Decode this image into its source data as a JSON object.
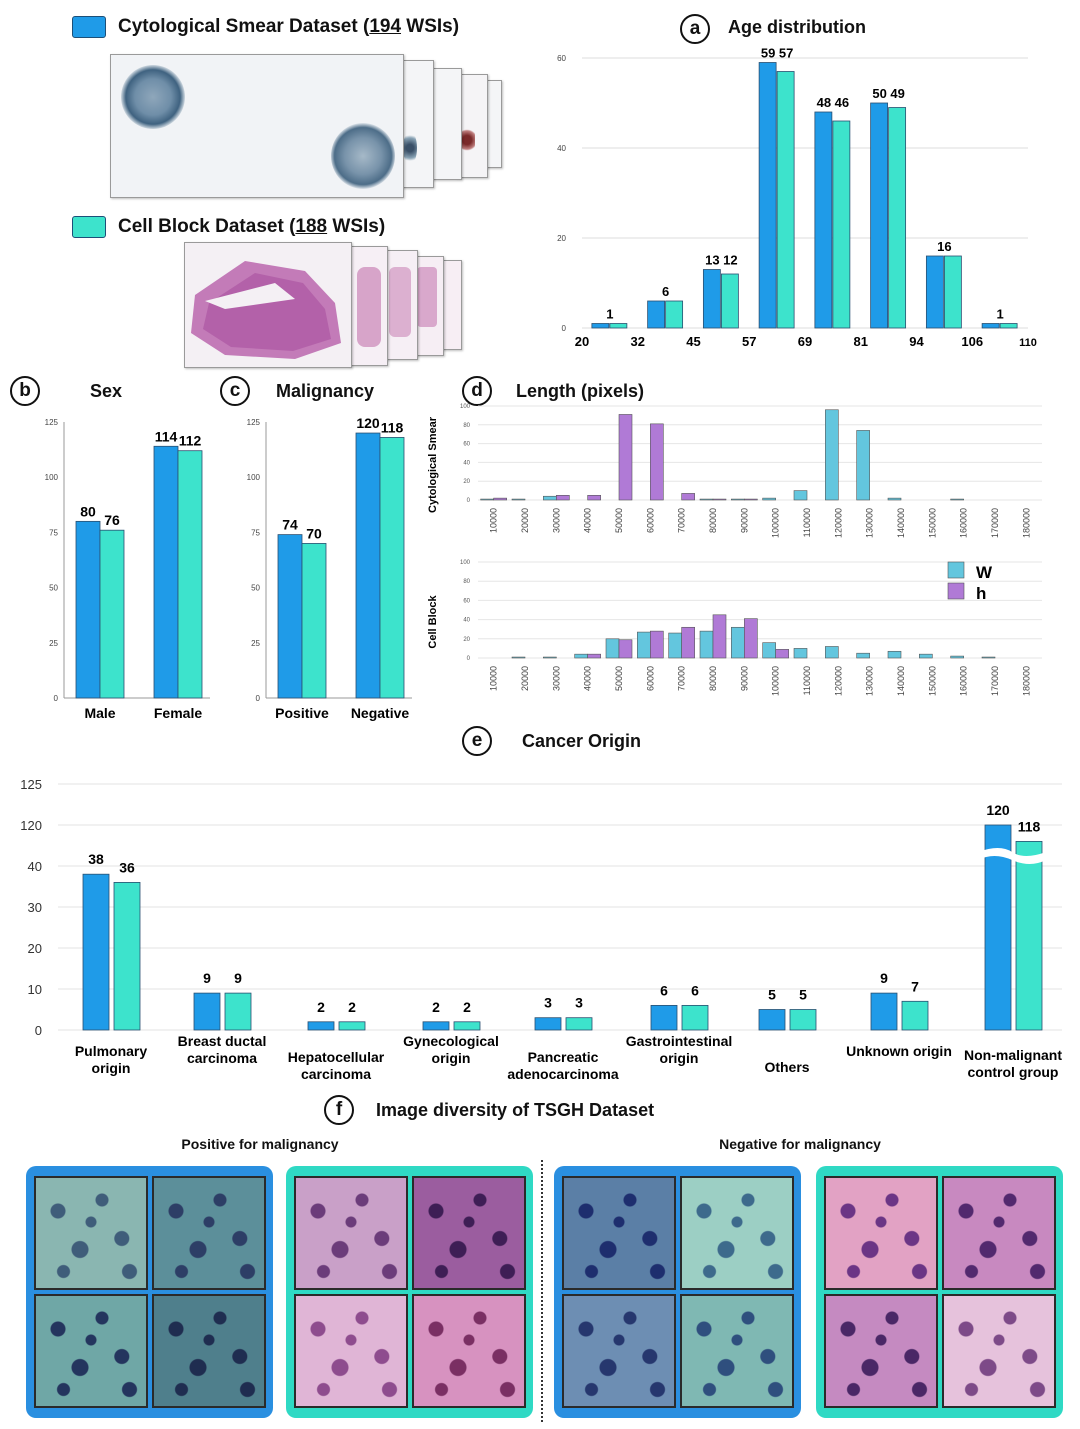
{
  "colors": {
    "blue": "#1f9be8",
    "teal": "#3de3cc",
    "w": "#63c6de",
    "h": "#b07ad6",
    "cyto_frame": "#2a8fe0",
    "cell_frame": "#2fd9c4"
  },
  "datasets": {
    "cyto": {
      "prefix": "Cytological Smear Dataset (",
      "count": "194",
      "suffix": " WSIs)"
    },
    "cell": {
      "prefix": "Cell Block Dataset (",
      "count": "188",
      "suffix": " WSIs)"
    }
  },
  "panels": {
    "a": {
      "letter": "a",
      "title": "Age distribution"
    },
    "b": {
      "letter": "b",
      "title": "Sex"
    },
    "c": {
      "letter": "c",
      "title": "Malignancy"
    },
    "d": {
      "letter": "d",
      "title": "Length (pixels)"
    },
    "e": {
      "letter": "e",
      "title": "Cancer Origin"
    },
    "f": {
      "letter": "f",
      "title": "Image diversity of TSGH Dataset"
    }
  },
  "diversity": {
    "positive_title": "Positive for malignancy",
    "negative_title": "Negative for malignancy"
  },
  "chart_data": [
    {
      "id": "a",
      "type": "bar",
      "title": "Age distribution",
      "x_ticks": [
        "20",
        "32",
        "45",
        "57",
        "69",
        "81",
        "94",
        "106",
        "110"
      ],
      "y_ticks": [
        "0",
        "20",
        "40",
        "60"
      ],
      "ylim": [
        0,
        60
      ],
      "series": [
        {
          "values": [
            1,
            6,
            13,
            59,
            48,
            50,
            16,
            1
          ]
        },
        {
          "values": [
            1,
            6,
            12,
            57,
            46,
            49,
            16,
            1
          ]
        }
      ],
      "labels": [
        "1",
        "6",
        "13 12",
        "59 57",
        "48 46",
        "50 49",
        "16",
        "1"
      ]
    },
    {
      "id": "b",
      "type": "bar",
      "title": "Sex",
      "categories": [
        "Male",
        "Female"
      ],
      "y_ticks": [
        "0",
        "25",
        "50",
        "75",
        "100",
        "125"
      ],
      "ylim": [
        0,
        125
      ],
      "series": [
        {
          "values": [
            80,
            114
          ]
        },
        {
          "values": [
            76,
            112
          ]
        }
      ]
    },
    {
      "id": "c",
      "type": "bar",
      "title": "Malignancy",
      "categories": [
        "Positive",
        "Negative"
      ],
      "y_ticks": [
        "0",
        "25",
        "50",
        "75",
        "100",
        "125"
      ],
      "ylim": [
        0,
        125
      ],
      "series": [
        {
          "values": [
            74,
            120
          ]
        },
        {
          "values": [
            70,
            118
          ]
        }
      ]
    },
    {
      "id": "d1",
      "type": "bar",
      "ylabel": "Cytological Smear",
      "categories": [
        "10000",
        "20000",
        "30000",
        "40000",
        "50000",
        "60000",
        "70000",
        "80000",
        "90000",
        "100000",
        "110000",
        "120000",
        "130000",
        "140000",
        "150000",
        "160000",
        "170000",
        "180000"
      ],
      "y_ticks": [
        "0",
        "20",
        "40",
        "60",
        "80",
        "100"
      ],
      "ylim": [
        0,
        100
      ],
      "series": [
        {
          "name": "W",
          "values": [
            1,
            1,
            4,
            0,
            0,
            0,
            0,
            1,
            1,
            2,
            10,
            96,
            74,
            2,
            0,
            1,
            0,
            0
          ]
        },
        {
          "name": "h",
          "values": [
            2,
            0,
            5,
            5,
            91,
            81,
            7,
            1,
            1,
            0,
            0,
            0,
            0,
            0,
            0,
            0,
            0,
            0
          ]
        }
      ]
    },
    {
      "id": "d2",
      "type": "bar",
      "ylabel": "Cell Block",
      "categories": [
        "10000",
        "20000",
        "30000",
        "40000",
        "50000",
        "60000",
        "70000",
        "80000",
        "90000",
        "100000",
        "110000",
        "120000",
        "130000",
        "140000",
        "150000",
        "160000",
        "170000",
        "180000"
      ],
      "y_ticks": [
        "0",
        "20",
        "40",
        "60",
        "80",
        "100"
      ],
      "ylim": [
        0,
        100
      ],
      "series": [
        {
          "name": "W",
          "values": [
            0,
            1,
            1,
            4,
            20,
            27,
            26,
            28,
            32,
            16,
            10,
            12,
            5,
            7,
            4,
            2,
            1,
            0
          ]
        },
        {
          "name": "h",
          "values": [
            0,
            0,
            0,
            4,
            19,
            28,
            32,
            45,
            41,
            9,
            0,
            0,
            0,
            0,
            0,
            0,
            0,
            0
          ]
        }
      ],
      "legend": [
        "W",
        "h"
      ]
    },
    {
      "id": "e",
      "type": "bar",
      "title": "Cancer Origin",
      "categories": [
        "Pulmonary origin",
        "Breast ductal carcinoma",
        "Hepatocellular carcinoma",
        "Gynecological origin",
        "Pancreatic adenocarcinoma",
        "Gastrointestinal origin",
        "Others",
        "Unknown origin",
        "Non-malignant control group"
      ],
      "y_ticks": [
        "0",
        "10",
        "20",
        "30",
        "40",
        "120",
        "125"
      ],
      "series": [
        {
          "values": [
            38,
            9,
            2,
            2,
            3,
            6,
            5,
            9,
            120
          ]
        },
        {
          "values": [
            36,
            9,
            2,
            2,
            3,
            6,
            5,
            7,
            118
          ]
        }
      ],
      "axis_break": "between 40 and 120"
    }
  ]
}
